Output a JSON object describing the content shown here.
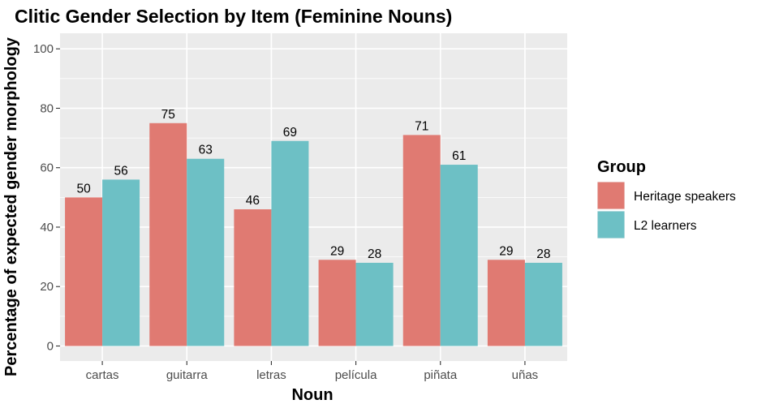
{
  "chart_data": {
    "type": "bar",
    "title": "Clitic Gender Selection by Item (Feminine Nouns)",
    "xlabel": "Noun",
    "ylabel": "Percentage of expected gender morphology",
    "categories": [
      "cartas",
      "guitarra",
      "letras",
      "película",
      "piñata",
      "uñas"
    ],
    "series": [
      {
        "name": "Heritage speakers",
        "color": "#E07A72",
        "values": [
          50,
          75,
          46,
          29,
          71,
          29
        ]
      },
      {
        "name": "L2 learners",
        "color": "#6DC0C5",
        "values": [
          56,
          63,
          69,
          28,
          61,
          28
        ]
      }
    ],
    "data_labels": [
      [
        "50",
        "75",
        "46",
        "29",
        "71",
        "29"
      ],
      [
        "56",
        "63",
        "69",
        "28",
        "61",
        "28"
      ]
    ],
    "ylim": [
      0,
      105
    ],
    "yticks": [
      0,
      20,
      40,
      60,
      80,
      100
    ],
    "grid": true,
    "panel_color": "#EBEBEB",
    "legend": {
      "title": "Group",
      "position": "right"
    }
  }
}
